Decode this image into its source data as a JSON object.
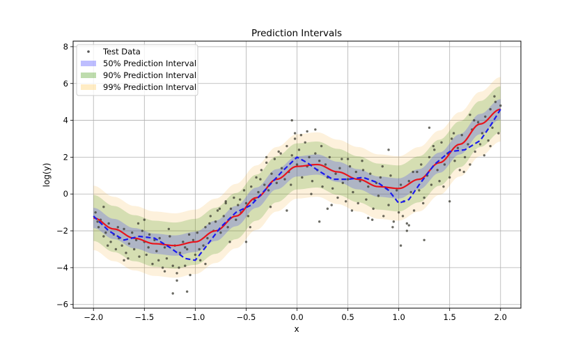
{
  "chart_data": {
    "type": "line",
    "title": "Prediction Intervals",
    "xlabel": "x",
    "ylabel": "log(y)",
    "xlim": [
      -2.2,
      2.2
    ],
    "ylim": [
      -6.2,
      8.3
    ],
    "xticks": [
      -2.0,
      -1.5,
      -1.0,
      -0.5,
      0.0,
      0.5,
      1.0,
      1.5,
      2.0
    ],
    "xtick_labels": [
      "−2.0",
      "−1.5",
      "−1.0",
      "−0.5",
      "0.0",
      "0.5",
      "1.0",
      "1.5",
      "2.0"
    ],
    "yticks": [
      -6,
      -4,
      -2,
      0,
      2,
      4,
      6,
      8
    ],
    "ytick_labels": [
      "−6",
      "−4",
      "−2",
      "0",
      "2",
      "4",
      "6",
      "8"
    ],
    "grid": true,
    "legend_position": "top-left",
    "legend": [
      {
        "label": "Test Data",
        "kind": "marker",
        "color": "#555555"
      },
      {
        "label": "50% Prediction Interval",
        "kind": "patch",
        "color": "#6f6fff"
      },
      {
        "label": "90% Prediction Interval",
        "kind": "patch",
        "color": "#6fb24a"
      },
      {
        "label": "99% Prediction Interval",
        "kind": "patch",
        "color": "#ffd98a"
      }
    ],
    "bands": [
      {
        "name": "99% Prediction Interval",
        "half_width": 1.75,
        "color": "#f5a623",
        "opacity": 0.16
      },
      {
        "name": "90% Prediction Interval",
        "half_width": 1.25,
        "color": "#4a9a1e",
        "opacity": 0.22
      },
      {
        "name": "50% Prediction Interval",
        "half_width": 0.55,
        "color": "#3a3aff",
        "opacity": 0.25
      }
    ],
    "mean_curve": {
      "color": "#e8141c",
      "x": [
        -2.0,
        -1.8,
        -1.6,
        -1.4,
        -1.2,
        -1.0,
        -0.8,
        -0.6,
        -0.4,
        -0.2,
        0.0,
        0.2,
        0.4,
        0.6,
        0.8,
        1.0,
        1.2,
        1.4,
        1.6,
        1.8,
        2.0
      ],
      "y": [
        -1.3,
        -1.9,
        -2.4,
        -2.7,
        -2.8,
        -2.6,
        -2.0,
        -1.2,
        -0.2,
        0.8,
        1.5,
        1.6,
        1.2,
        0.8,
        0.4,
        0.3,
        0.8,
        1.7,
        2.7,
        3.8,
        4.6
      ]
    },
    "fit_curve": {
      "color": "#1a1aee",
      "dashed": true,
      "x": [
        -2.0,
        -1.85,
        -1.7,
        -1.55,
        -1.4,
        -1.25,
        -1.1,
        -1.0,
        -0.9,
        -0.75,
        -0.6,
        -0.45,
        -0.3,
        -0.15,
        0.0,
        0.1,
        0.2,
        0.35,
        0.5,
        0.65,
        0.8,
        0.9,
        1.0,
        1.1,
        1.2,
        1.35,
        1.5,
        1.65,
        1.8,
        1.9,
        2.0
      ],
      "y": [
        -1.2,
        -2.0,
        -2.5,
        -2.3,
        -2.4,
        -2.9,
        -3.5,
        -3.6,
        -2.9,
        -1.8,
        -1.0,
        -0.6,
        0.3,
        1.2,
        2.0,
        1.7,
        1.3,
        0.8,
        0.8,
        0.9,
        0.6,
        0.2,
        -0.5,
        -0.3,
        0.5,
        1.6,
        2.3,
        2.4,
        2.9,
        3.7,
        4.6
      ]
    },
    "scatter": {
      "name": "Test Data",
      "color": "#555555",
      "x": [
        -1.98,
        -1.95,
        -1.93,
        -1.9,
        -1.88,
        -1.85,
        -1.83,
        -1.8,
        -1.78,
        -1.75,
        -1.72,
        -1.7,
        -1.68,
        -1.65,
        -1.62,
        -1.6,
        -1.58,
        -1.55,
        -1.52,
        -1.5,
        -1.48,
        -1.45,
        -1.42,
        -1.4,
        -1.38,
        -1.35,
        -1.32,
        -1.3,
        -1.28,
        -1.25,
        -1.22,
        -1.2,
        -1.18,
        -1.15,
        -1.12,
        -1.1,
        -1.08,
        -1.05,
        -1.02,
        -1.0,
        -0.98,
        -0.95,
        -0.92,
        -0.9,
        -0.88,
        -0.85,
        -0.82,
        -0.8,
        -0.78,
        -0.75,
        -0.72,
        -0.7,
        -0.68,
        -0.65,
        -0.62,
        -0.6,
        -0.58,
        -0.55,
        -0.52,
        -0.5,
        -0.48,
        -0.45,
        -0.42,
        -0.4,
        -0.38,
        -0.35,
        -0.32,
        -0.3,
        -0.28,
        -0.25,
        -0.22,
        -0.2,
        -0.18,
        -0.15,
        -0.12,
        -0.1,
        -0.08,
        -0.05,
        -0.02,
        0.0,
        0.02,
        0.05,
        0.08,
        0.1,
        0.12,
        0.15,
        0.18,
        0.2,
        0.22,
        0.25,
        0.28,
        0.3,
        0.32,
        0.35,
        0.38,
        0.4,
        0.42,
        0.45,
        0.48,
        0.5,
        0.52,
        0.55,
        0.58,
        0.6,
        0.62,
        0.65,
        0.68,
        0.7,
        0.72,
        0.75,
        0.78,
        0.8,
        0.82,
        0.85,
        0.88,
        0.9,
        0.92,
        0.95,
        0.98,
        1.0,
        1.02,
        1.05,
        1.08,
        1.1,
        1.12,
        1.15,
        1.18,
        1.2,
        1.22,
        1.25,
        1.28,
        1.3,
        1.32,
        1.35,
        1.38,
        1.4,
        1.42,
        1.45,
        1.48,
        1.5,
        1.52,
        1.55,
        1.58,
        1.6,
        1.62,
        1.65,
        1.68,
        1.7,
        1.72,
        1.75,
        1.78,
        1.8,
        1.82,
        1.85,
        1.88,
        1.9,
        1.92,
        1.95,
        1.98,
        2.0,
        -1.96,
        -1.86,
        -1.76,
        -1.66,
        -1.56,
        -1.46,
        -1.36,
        -1.26,
        -1.16,
        -1.06,
        -0.96,
        -0.86,
        -0.76,
        -0.66,
        -0.56,
        -0.46,
        -0.36,
        -0.26,
        -0.16,
        -0.06,
        0.04,
        0.14,
        0.24,
        0.34,
        0.44,
        0.54,
        0.64,
        0.74,
        0.84,
        0.94,
        1.04,
        1.14,
        1.24,
        1.34,
        1.44,
        1.54,
        1.64,
        1.74,
        1.84,
        1.94,
        -1.9,
        -1.7,
        -1.5,
        -1.3,
        -1.1,
        -0.9,
        -0.7,
        -0.5,
        -0.3,
        -0.1,
        0.1,
        0.3,
        0.5,
        0.7,
        0.9,
        1.1,
        1.3,
        1.5,
        1.7,
        1.9,
        -1.22,
        -1.18,
        -1.08,
        -0.05,
        1.02,
        0.22,
        0.18,
        -0.02,
        1.08,
        1.25
      ],
      "y": [
        -1.0,
        -1.8,
        -1.4,
        -2.3,
        -2.1,
        -1.6,
        -2.6,
        -2.2,
        -3.0,
        -2.4,
        -2.8,
        -1.9,
        -3.2,
        -2.7,
        -2.1,
        -3.0,
        -2.5,
        -3.4,
        -2.0,
        -2.6,
        -3.3,
        -2.2,
        -3.8,
        -2.5,
        -3.1,
        -2.4,
        -4.0,
        -2.9,
        -3.5,
        -2.3,
        -3.9,
        -2.8,
        -4.3,
        -3.2,
        -2.6,
        -3.9,
        -3.0,
        -4.4,
        -2.5,
        -3.3,
        -2.1,
        -3.6,
        -2.8,
        -1.8,
        -2.4,
        -1.2,
        -2.0,
        -1.5,
        -0.9,
        -2.1,
        -1.2,
        -0.5,
        -1.8,
        -0.8,
        -0.2,
        -1.4,
        -0.6,
        -1.0,
        0.2,
        -0.5,
        -1.2,
        0.4,
        -0.3,
        0.9,
        0.1,
        1.3,
        0.5,
        1.7,
        0.2,
        1.1,
        1.9,
        0.6,
        2.3,
        1.4,
        0.8,
        2.6,
        1.2,
        2.1,
        3.0,
        1.6,
        2.4,
        0.9,
        2.8,
        1.5,
        2.0,
        0.7,
        2.2,
        1.3,
        1.8,
        0.4,
        1.6,
        0.9,
        2.0,
        0.3,
        1.1,
        -0.2,
        1.4,
        0.6,
        -0.4,
        0.8,
        1.5,
        0.1,
        1.2,
        -0.5,
        0.7,
        1.3,
        -0.3,
        0.4,
        1.1,
        -0.8,
        0.6,
        -0.1,
        0.9,
        -1.2,
        0.3,
        -0.6,
        1.0,
        -1.5,
        0.2,
        -1.0,
        0.5,
        -0.4,
        -1.6,
        0.7,
        0.1,
        -0.9,
        1.2,
        0.2,
        1.6,
        -0.2,
        1.0,
        2.0,
        0.5,
        2.4,
        1.3,
        0.7,
        2.8,
        1.6,
        2.2,
        0.9,
        3.0,
        1.8,
        2.5,
        1.3,
        3.2,
        2.0,
        2.7,
        1.6,
        3.5,
        2.3,
        3.9,
        2.7,
        3.3,
        4.2,
        2.9,
        4.6,
        3.6,
        5.0,
        3.3,
        4.8,
        -1.5,
        -2.8,
        -1.8,
        -3.5,
        -1.6,
        -2.9,
        -3.6,
        -1.9,
        -4.0,
        -2.2,
        -3.0,
        -1.6,
        -0.8,
        -2.6,
        -0.3,
        -1.8,
        0.8,
        -0.7,
        2.2,
        0.5,
        3.2,
        0.0,
        2.6,
        -0.6,
        1.9,
        -0.9,
        1.8,
        -1.4,
        1.5,
        -1.8,
        -1.2,
        1.2,
        -0.5,
        2.6,
        0.4,
        3.3,
        1.2,
        4.0,
        2.1,
        5.3,
        -0.7,
        -3.6,
        -1.4,
        -4.2,
        -2.9,
        -3.8,
        -0.4,
        -2.6,
        2.0,
        -0.9,
        3.4,
        -0.8,
        1.9,
        -1.3,
        2.4,
        -1.7,
        3.6,
        -0.4,
        4.3,
        2.6,
        -5.4,
        -4.7,
        -5.3,
        4.0,
        -2.8,
        -1.5,
        3.5,
        3.3,
        -2.0,
        -2.5
      ]
    }
  }
}
